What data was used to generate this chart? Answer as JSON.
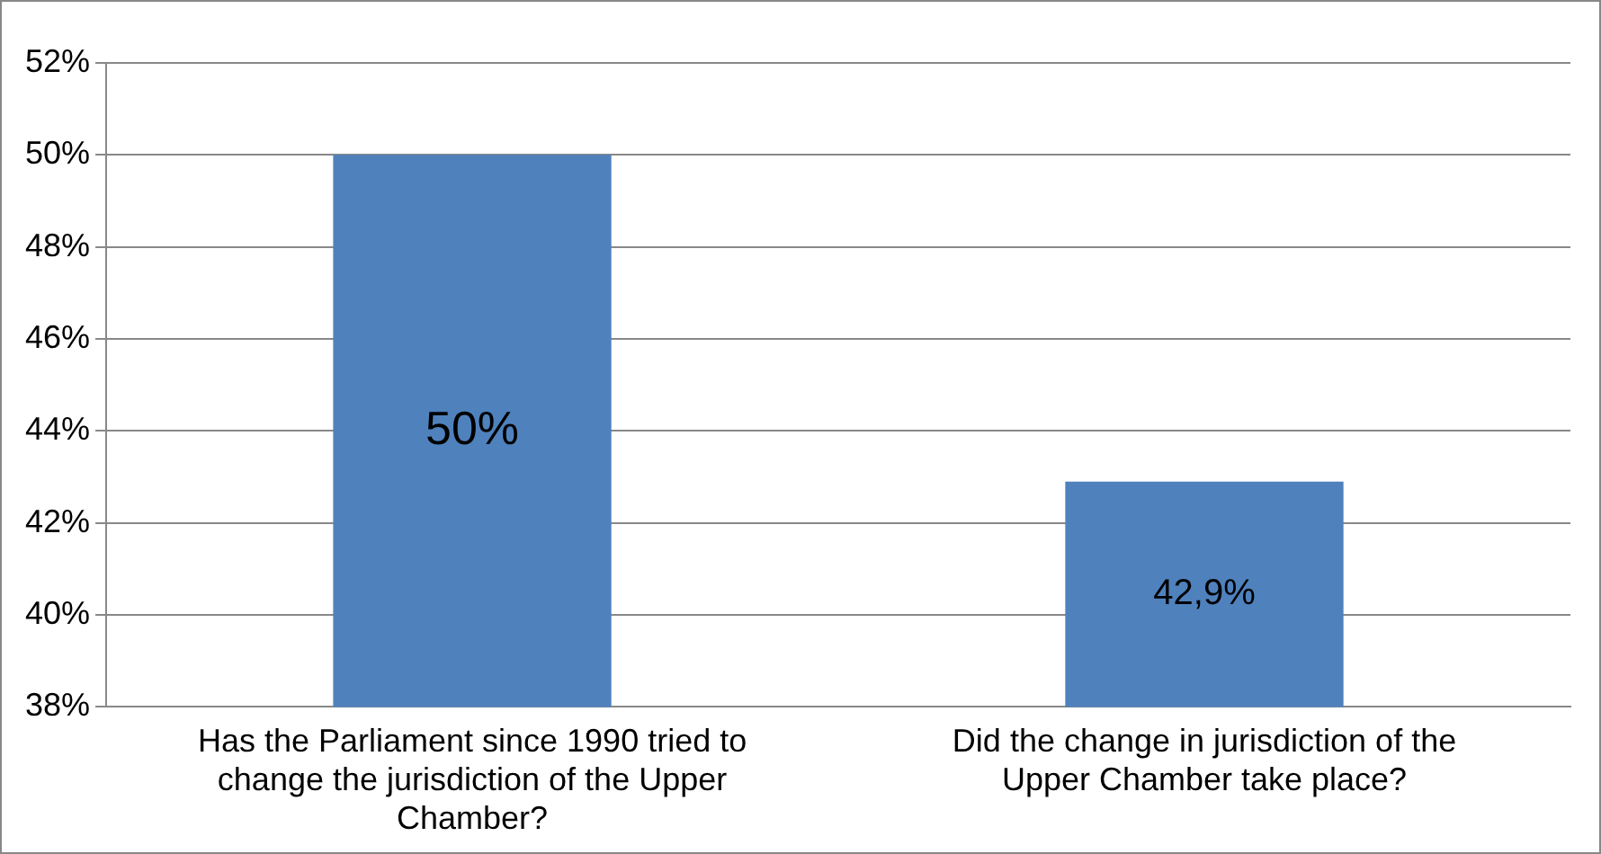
{
  "chart_data": {
    "type": "bar",
    "categories": [
      "Has the Parliament since 1990 tried to change the jurisdiction of the Upper Chamber?",
      "Did the change in jurisdiction of the Upper Chamber take place?"
    ],
    "values": [
      50,
      42.9
    ],
    "value_labels": [
      "50%",
      "42,9%"
    ],
    "color": "#4f81bd",
    "ylim": [
      38,
      52
    ],
    "yticks": [
      {
        "value": 38,
        "label": "38%"
      },
      {
        "value": 40,
        "label": "40%"
      },
      {
        "value": 42,
        "label": "42%"
      },
      {
        "value": 44,
        "label": "44%"
      },
      {
        "value": 46,
        "label": "46%"
      },
      {
        "value": 48,
        "label": "48%"
      },
      {
        "value": 50,
        "label": "50%"
      },
      {
        "value": 52,
        "label": "52%"
      }
    ],
    "grid": "y",
    "legend": false
  }
}
